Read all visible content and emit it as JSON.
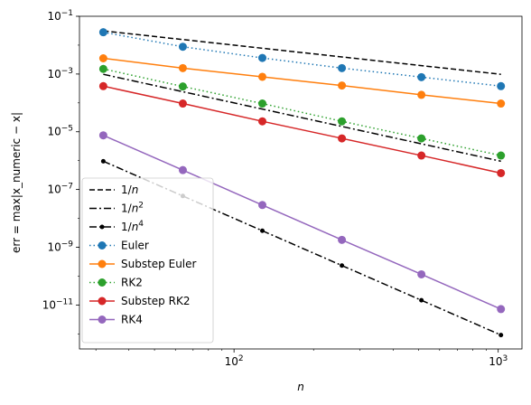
{
  "chart_data": {
    "type": "line",
    "xlabel": "n",
    "ylabel": "err = max|x_numeric − x|",
    "xscale": "log",
    "yscale": "log",
    "xlim": [
      26,
      1230
    ],
    "ylim": [
      3e-13,
      0.1
    ],
    "grid": false,
    "legend_placement": "lower-left",
    "x": [
      32,
      64,
      128,
      256,
      512,
      1024
    ],
    "x_ticks": [
      {
        "value": 100,
        "base": "10",
        "exp": "2"
      },
      {
        "value": 1000,
        "base": "10",
        "exp": "3"
      }
    ],
    "y_ticks": [
      {
        "value": 0.1,
        "base": "10",
        "exp": "−1"
      },
      {
        "value": 0.001,
        "base": "10",
        "exp": "−3"
      },
      {
        "value": 1e-05,
        "base": "10",
        "exp": "−5"
      },
      {
        "value": 1e-07,
        "base": "10",
        "exp": "−7"
      },
      {
        "value": 1e-09,
        "base": "10",
        "exp": "−9"
      },
      {
        "value": 1e-11,
        "base": "10",
        "exp": "−11"
      }
    ],
    "series": [
      {
        "name": "1/n",
        "label_main": "1/",
        "label_var": "n",
        "label_sup": "",
        "color": "#000000",
        "dash": "6,3",
        "marker": "none",
        "values": [
          0.03125,
          0.015625,
          0.0078125,
          0.00390625,
          0.001953125,
          0.0009765625
        ]
      },
      {
        "name": "1/n^2",
        "label_main": "1/",
        "label_var": "n",
        "label_sup": "2",
        "color": "#000000",
        "dash": "8,3,2,3",
        "marker": "none",
        "values": [
          0.0009765625,
          0.000244140625,
          6.103515625e-05,
          1.52587890625e-05,
          3.814697265625e-06,
          9.5367431640625e-07
        ]
      },
      {
        "name": "1/n^4",
        "label_main": "1/",
        "label_var": "n",
        "label_sup": "4",
        "color": "#000000",
        "dash": "8,3,2,3",
        "marker": "small",
        "values": [
          9.5367431640625e-07,
          5.960464477539063e-08,
          3.725290298461914e-09,
          2.3283064365386963e-10,
          1.4551915228366852e-11,
          9.094947017729282e-13
        ]
      },
      {
        "name": "Euler",
        "label_main": "Euler",
        "label_var": "",
        "label_sup": "",
        "color": "#1f77b4",
        "dash": "1.5,3",
        "marker": "circle",
        "values": [
          0.028,
          0.0088,
          0.0036,
          0.0016,
          0.00078,
          0.00038
        ]
      },
      {
        "name": "Substep Euler",
        "label_main": "Substep Euler",
        "label_var": "",
        "label_sup": "",
        "color": "#ff7f0e",
        "dash": "",
        "marker": "circle",
        "values": [
          0.0035,
          0.0016,
          0.0008,
          0.0004,
          0.00019,
          9.5e-05
        ]
      },
      {
        "name": "RK2",
        "label_main": "RK2",
        "label_var": "",
        "label_sup": "",
        "color": "#2ca02c",
        "dash": "1.5,3",
        "marker": "circle",
        "values": [
          0.0015,
          0.00037,
          9.5e-05,
          2.3e-05,
          5.9e-06,
          1.5e-06
        ]
      },
      {
        "name": "Substep RK2",
        "label_main": "Substep RK2",
        "label_var": "",
        "label_sup": "",
        "color": "#d62728",
        "dash": "",
        "marker": "circle",
        "values": [
          0.00038,
          9.5e-05,
          2.3e-05,
          5.9e-06,
          1.5e-06,
          3.7e-07
        ]
      },
      {
        "name": "RK4",
        "label_main": "RK4",
        "label_var": "",
        "label_sup": "",
        "color": "#9467bd",
        "dash": "",
        "marker": "circle",
        "values": [
          7.5e-06,
          4.7e-07,
          2.9e-08,
          1.8e-09,
          1.15e-10,
          7.2e-12
        ]
      }
    ]
  }
}
